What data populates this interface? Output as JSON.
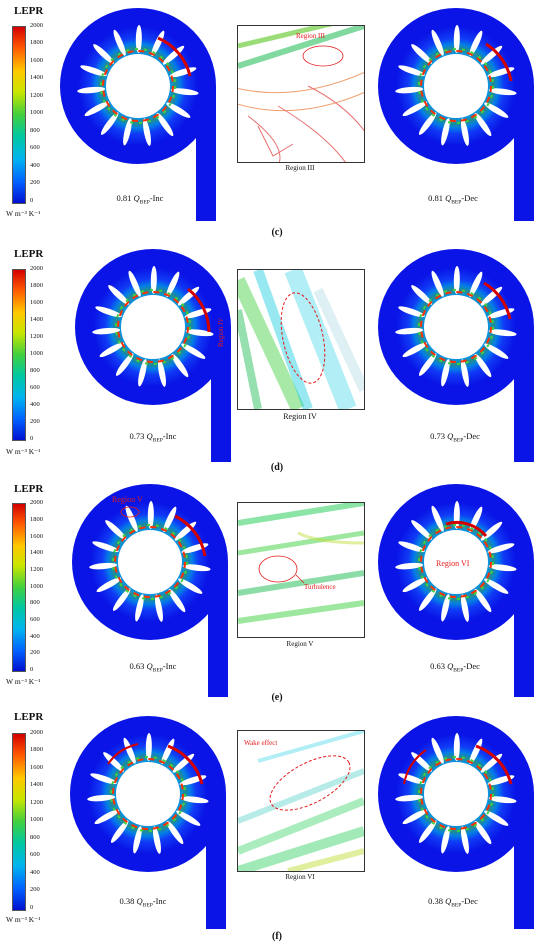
{
  "colorbar": {
    "title": "LEPR",
    "ticks": [
      "2000",
      "1800",
      "1600",
      "1400",
      "1200",
      "1000",
      "800",
      "600",
      "400",
      "200",
      "0"
    ],
    "unit": "W m⁻³ K⁻¹",
    "gradient": [
      "#d40000",
      "#ff5a00",
      "#ffc800",
      "#c8e600",
      "#40d040",
      "#00c8a0",
      "#00b4f0",
      "#0060ff",
      "#0010d0"
    ]
  },
  "panels": [
    {
      "letter": "(c)",
      "left_flow": "0.81",
      "left_tag": "-Inc",
      "right_flow": "0.81",
      "right_tag": "-Dec",
      "region_caption": "Region III",
      "annotations": [
        "Region III"
      ]
    },
    {
      "letter": "(d)",
      "left_flow": "0.73",
      "left_tag": "-Inc",
      "right_flow": "0.73",
      "right_tag": "-Dec",
      "region_caption": "Region   IV",
      "annotations": [
        "Region IV"
      ]
    },
    {
      "letter": "(e)",
      "left_flow": "0.63",
      "left_tag": "-Inc",
      "right_flow": "0.63",
      "right_tag": "-Dec",
      "region_caption": "Region V",
      "annotations": [
        "Region V",
        "Turbulence",
        "Region VI"
      ]
    },
    {
      "letter": "(f)",
      "left_flow": "0.38",
      "left_tag": "-Inc",
      "right_flow": "0.38",
      "right_tag": "-Dec",
      "region_caption": "Region VI",
      "annotations": [
        "Wake effect"
      ]
    }
  ],
  "q_symbol": "Q",
  "q_subscript": "BEP",
  "colors": {
    "volute": "#0a14e6",
    "hub": "#ffffff",
    "highlight": "#e31b1b"
  }
}
